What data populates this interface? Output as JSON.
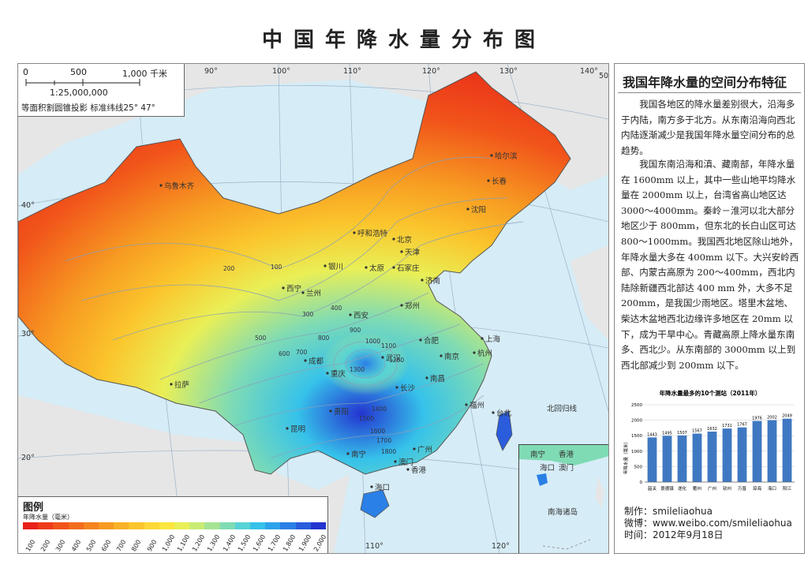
{
  "title": "中国年降水量分布图",
  "scale": {
    "ticks": [
      "0",
      "500",
      "1,000 千米"
    ],
    "ratio": "1:25,000,000",
    "projection": "等面积割圆锥投影  标准纬线25°    47°"
  },
  "graticule": {
    "longitudes": [
      "90°",
      "100°",
      "110°",
      "120°",
      "130°",
      "140°",
      "110°",
      "120°"
    ],
    "latitudes": [
      "50°",
      "40°",
      "30°",
      "20°"
    ]
  },
  "places": [
    {
      "name": "乌鲁木齐"
    },
    {
      "name": "哈尔滨"
    },
    {
      "name": "长春"
    },
    {
      "name": "沈阳"
    },
    {
      "name": "呼和浩特"
    },
    {
      "name": "北京"
    },
    {
      "name": "天津"
    },
    {
      "name": "石家庄"
    },
    {
      "name": "银川"
    },
    {
      "name": "太原"
    },
    {
      "name": "济南"
    },
    {
      "name": "西宁"
    },
    {
      "name": "兰州"
    },
    {
      "name": "郑州"
    },
    {
      "name": "西安"
    },
    {
      "name": "合肥"
    },
    {
      "name": "南京"
    },
    {
      "name": "上海"
    },
    {
      "name": "成都"
    },
    {
      "name": "武汉"
    },
    {
      "name": "杭州"
    },
    {
      "name": "拉萨"
    },
    {
      "name": "重庆"
    },
    {
      "name": "长沙"
    },
    {
      "name": "南昌"
    },
    {
      "name": "福州"
    },
    {
      "name": "贵阳"
    },
    {
      "name": "台北"
    },
    {
      "name": "昆明"
    },
    {
      "name": "南宁"
    },
    {
      "name": "广州"
    },
    {
      "name": "澳门"
    },
    {
      "name": "香港"
    },
    {
      "name": "海口"
    },
    {
      "name": "北回归线"
    }
  ],
  "contour_labels": [
    "100",
    "200",
    "300",
    "400",
    "500",
    "600",
    "700",
    "800",
    "900",
    "1000",
    "1100",
    "1200",
    "1300",
    "1400",
    "1500",
    "1600",
    "1700",
    "1800"
  ],
  "inset": {
    "labels": [
      "南宁",
      "香港",
      "海口",
      "澳门",
      "南海诸岛"
    ]
  },
  "legend": {
    "title": "图例",
    "subtitle": "年降水量（毫米）",
    "classes": [
      "100",
      "200",
      "300",
      "400",
      "500",
      "600",
      "700",
      "800",
      "900",
      "1,000",
      "1,100",
      "1,200",
      "1,300",
      "1,400",
      "1,500",
      "1,600",
      "1,700",
      "1,800",
      "1,900",
      "2,000"
    ],
    "colors": [
      "#e8221a",
      "#ee3b1a",
      "#f1541a",
      "#f36c1c",
      "#f5841e",
      "#f79b22",
      "#f9b126",
      "#fbc52c",
      "#fdd834",
      "#fbe63e",
      "#e9ef56",
      "#c9ec74",
      "#a5e394",
      "#7fdbb4",
      "#57d3d6",
      "#36c2ea",
      "#2ba3ec",
      "#2a80e6",
      "#2a5cdc",
      "#2334d0"
    ]
  },
  "panel": {
    "heading": "我国年降水量的空间分布特征",
    "paragraphs": [
      "我国各地区的降水量差别很大，沿海多于内陆，南方多于北方。从东南沿海向西北内陆逐渐减少是我国年降水量空间分布的总趋势。",
      "我国东南沿海和滇、藏南部，年降水量在 1600mm 以上，其中一些山地平均降水量在 2000mm 以上，台湾省高山地区达 3000～4000mm。秦岭－淮河以北大部分地区少于 800mm，但东北的长白山区可达 800～1000mm。我国西北地区除山地外，年降水量大多在 400mm 以下。大兴安岭西部、内蒙古高原为 200～400mm，西北内陆除新疆西北部达 400 mm 外，大多不足 200mm，是我国少雨地区。塔里木盆地、柴达木盆地西北边缘许多地区在 20mm 以下，成为干旱中心。青藏高原上降水量东南多、西北少。从东南部的 3000mm 以上到西北部减少到 200mm 以下。"
    ],
    "credits": [
      "制作：smileliaohua",
      "微博：www.weibo.com/smileliaohua",
      "时间：2012年9月18日"
    ]
  },
  "chart_data": {
    "type": "bar",
    "title": "年降水量最多的10个测站（2011年）",
    "categories": [
      "韶关",
      "景德镇",
      "遂化",
      "衢州",
      "广州",
      "钦州",
      "万普",
      "琼海",
      "海口",
      "阳江"
    ],
    "values": [
      1443,
      1495,
      1507,
      1567,
      1632,
      1731,
      1767,
      1976,
      2002,
      2049
    ],
    "ylabel": "年降水量（毫米）",
    "ylim": [
      0,
      2500
    ],
    "yticks": [
      "0",
      "500",
      "1000",
      "1500",
      "2000",
      "2500"
    ],
    "bar_color": "#3f78c2",
    "grid": true
  }
}
